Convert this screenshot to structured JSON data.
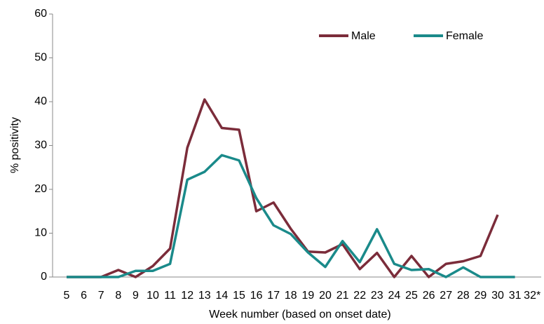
{
  "chart_data": {
    "type": "line",
    "x_label": "Week number (based on onset date)",
    "y_label": "% positivity",
    "categories": [
      "5",
      "6",
      "7",
      "8",
      "9",
      "10",
      "11",
      "12",
      "13",
      "14",
      "15",
      "16",
      "17",
      "18",
      "19",
      "20",
      "21",
      "22",
      "23",
      "24",
      "25",
      "26",
      "27",
      "28",
      "29",
      "30",
      "31",
      "32*"
    ],
    "series": [
      {
        "name": "Male",
        "color": "#7b2c3a",
        "values": [
          0,
          0,
          0,
          1.6,
          0,
          2.5,
          6.5,
          29.5,
          40.5,
          34,
          33.6,
          15,
          17,
          11,
          5.8,
          5.6,
          7.5,
          1.8,
          5.5,
          0,
          4.8,
          0,
          3,
          3.6,
          4.8,
          14.2,
          null,
          null
        ]
      },
      {
        "name": "Female",
        "color": "#1a8a8a",
        "values": [
          0,
          0,
          0,
          0,
          1.4,
          1.4,
          3,
          22.2,
          24,
          27.8,
          26.6,
          18,
          11.8,
          9.8,
          5.6,
          2.3,
          8.2,
          3.4,
          10.9,
          3,
          1.6,
          1.8,
          0,
          2.2,
          0,
          0,
          0,
          null
        ]
      }
    ],
    "ylim": [
      0,
      60
    ],
    "yticks": [
      0,
      10,
      20,
      30,
      40,
      50,
      60
    ],
    "legend": "top-right"
  }
}
